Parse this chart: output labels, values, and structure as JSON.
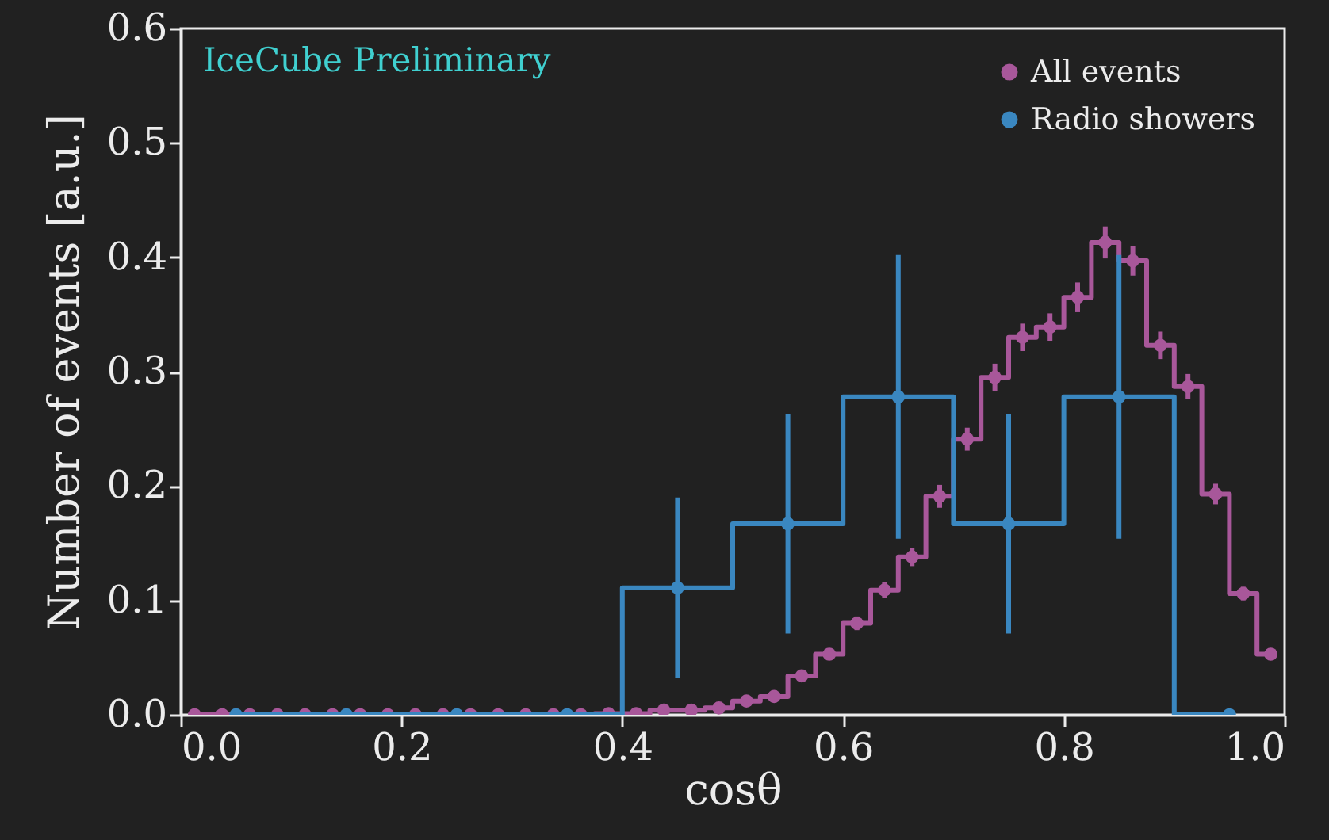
{
  "chart_data": {
    "type": "step",
    "xlabel": "cosθ",
    "ylabel": "Number of events [a.u.]",
    "annotations": [
      "IceCube Preliminary"
    ],
    "xlim": [
      0,
      1
    ],
    "ylim": [
      0,
      0.6
    ],
    "xticks": [
      {
        "value": 0,
        "label": "0.0"
      },
      0.2,
      0.4,
      0.6,
      0.8,
      {
        "value": 1,
        "label": "1.0"
      }
    ],
    "yticks": [
      {
        "value": 0,
        "label": "0.0"
      },
      0.1,
      0.2,
      0.3,
      0.4,
      0.5,
      0.6
    ],
    "grid": false,
    "legend": "top right",
    "marker": "circle",
    "line_style": "solid",
    "series": [
      {
        "name": "All events",
        "color": "#a8579a",
        "x": [
          0.0125,
          0.0375,
          0.0625,
          0.0875,
          0.1125,
          0.1375,
          0.1625,
          0.1875,
          0.2125,
          0.2375,
          0.2625,
          0.2875,
          0.3125,
          0.3375,
          0.3625,
          0.3875,
          0.4125,
          0.4375,
          0.4625,
          0.4875,
          0.5125,
          0.5375,
          0.5625,
          0.5875,
          0.6125,
          0.6375,
          0.6625,
          0.6875,
          0.7125,
          0.7375,
          0.7625,
          0.7875,
          0.8125,
          0.8375,
          0.8625,
          0.8875,
          0.9125,
          0.9375,
          0.9625,
          0.9875
        ],
        "values": [
          0,
          0,
          0,
          0,
          0,
          0,
          0,
          0,
          0,
          0,
          0,
          0,
          0,
          0,
          0,
          0.001,
          0.001,
          0.004,
          0.004,
          0.006,
          0.012,
          0.016,
          0.034,
          0.053,
          0.08,
          0.109,
          0.138,
          0.191,
          0.241,
          0.295,
          0.33,
          0.339,
          0.365,
          0.413,
          0.397,
          0.323,
          0.287,
          0.193,
          0.106,
          0.053
        ],
        "errors": [
          null,
          null,
          null,
          null,
          null,
          null,
          null,
          null,
          null,
          null,
          null,
          null,
          null,
          null,
          null,
          null,
          null,
          null,
          null,
          null,
          null,
          null,
          null,
          null,
          0.006,
          0.007,
          0.008,
          0.01,
          0.01,
          0.012,
          0.012,
          0.012,
          0.013,
          0.014,
          0.013,
          0.012,
          0.011,
          0.009,
          0.006,
          null
        ]
      },
      {
        "name": "Radio showers",
        "color": "#3a87c0",
        "x": [
          0.05,
          0.15,
          0.25,
          0.35,
          0.45,
          0.55,
          0.65,
          0.75,
          0.85,
          0.95
        ],
        "values": [
          0,
          0,
          0,
          0,
          0.111,
          0.167,
          0.278,
          0.167,
          0.278,
          0
        ],
        "errors": [
          null,
          null,
          null,
          null,
          0.079,
          0.096,
          0.124,
          0.096,
          0.124,
          null
        ]
      }
    ]
  }
}
